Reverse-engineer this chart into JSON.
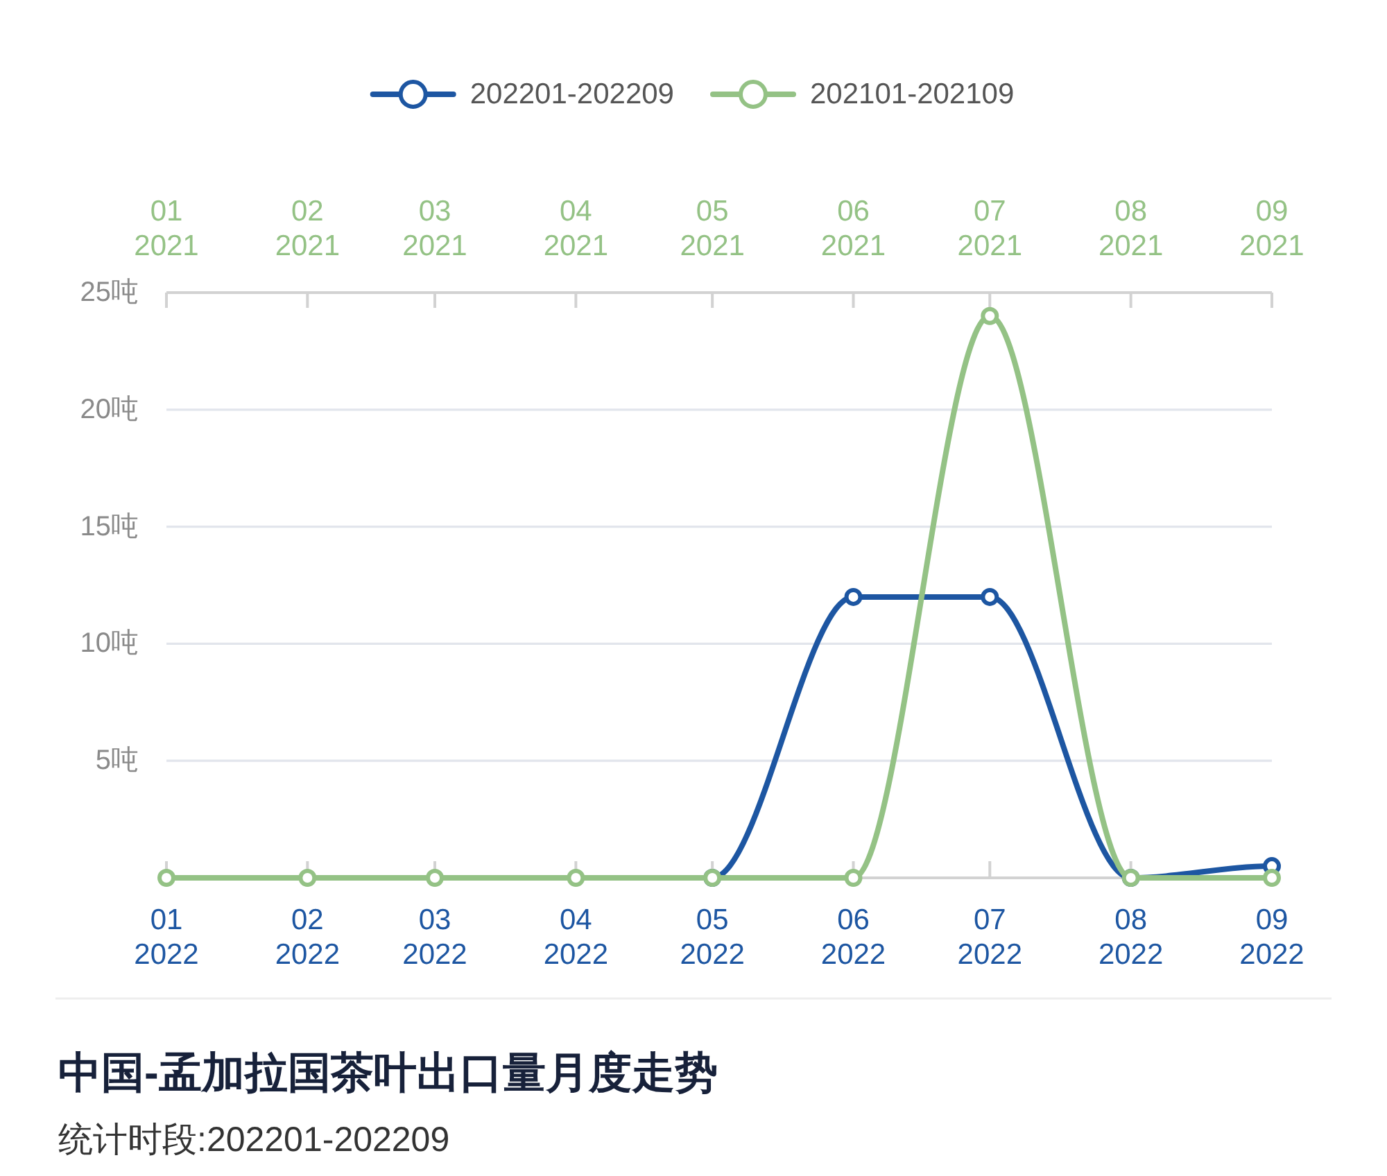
{
  "chart_data": {
    "type": "line",
    "title": "中国-孟加拉国茶叶出口量月度走势",
    "subtitle": "统计时段:202201-202209",
    "series": [
      {
        "name": "202201-202209",
        "color": "#1d56a2",
        "x": [
          "2022-05",
          "2022-06",
          "2022-07",
          "2022-08",
          "2022-09"
        ],
        "values": [
          0,
          12,
          12,
          0,
          0.5
        ]
      },
      {
        "name": "202101-202109",
        "color": "#94c285",
        "axis": "x2",
        "x": [
          "2021-01",
          "2021-02",
          "2021-03",
          "2021-04",
          "2021-05",
          "2021-06",
          "2021-07",
          "2021-08",
          "2021-09"
        ],
        "values": [
          0,
          0,
          0,
          0,
          0,
          0,
          24,
          0,
          0
        ]
      }
    ],
    "xlim": [
      "2022-01",
      "2022-09"
    ],
    "xticks": [
      {
        "value": "2022-01",
        "label": "01\n2022"
      },
      {
        "value": "2022-02",
        "label": "02\n2022"
      },
      {
        "value": "2022-03",
        "label": "03\n2022"
      },
      {
        "value": "2022-04",
        "label": "04\n2022"
      },
      {
        "value": "2022-05",
        "label": "05\n2022"
      },
      {
        "value": "2022-06",
        "label": "06\n2022"
      },
      {
        "value": "2022-07",
        "label": "07\n2022"
      },
      {
        "value": "2022-08",
        "label": "08\n2022"
      },
      {
        "value": "2022-09",
        "label": "09\n2022"
      }
    ],
    "x2lim": [
      "2021-01",
      "2021-09"
    ],
    "x2ticks": [
      {
        "value": "2021-01",
        "label": "01\n2021"
      },
      {
        "value": "2021-02",
        "label": "02\n2021"
      },
      {
        "value": "2021-03",
        "label": "03\n2021"
      },
      {
        "value": "2021-04",
        "label": "04\n2021"
      },
      {
        "value": "2021-05",
        "label": "05\n2021"
      },
      {
        "value": "2021-06",
        "label": "06\n2021"
      },
      {
        "value": "2021-07",
        "label": "07\n2021"
      },
      {
        "value": "2021-08",
        "label": "08\n2021"
      },
      {
        "value": "2021-09",
        "label": "09\n2021"
      }
    ],
    "ylim": [
      0,
      25
    ],
    "yticks": [
      {
        "value": 5,
        "label": "5吨"
      },
      {
        "value": 10,
        "label": "10吨"
      },
      {
        "value": 15,
        "label": "15吨"
      },
      {
        "value": 20,
        "label": "20吨"
      },
      {
        "value": 25,
        "label": "25吨"
      }
    ],
    "grid": "y",
    "legend": "top",
    "marker": "circle",
    "line_style": "solid"
  }
}
